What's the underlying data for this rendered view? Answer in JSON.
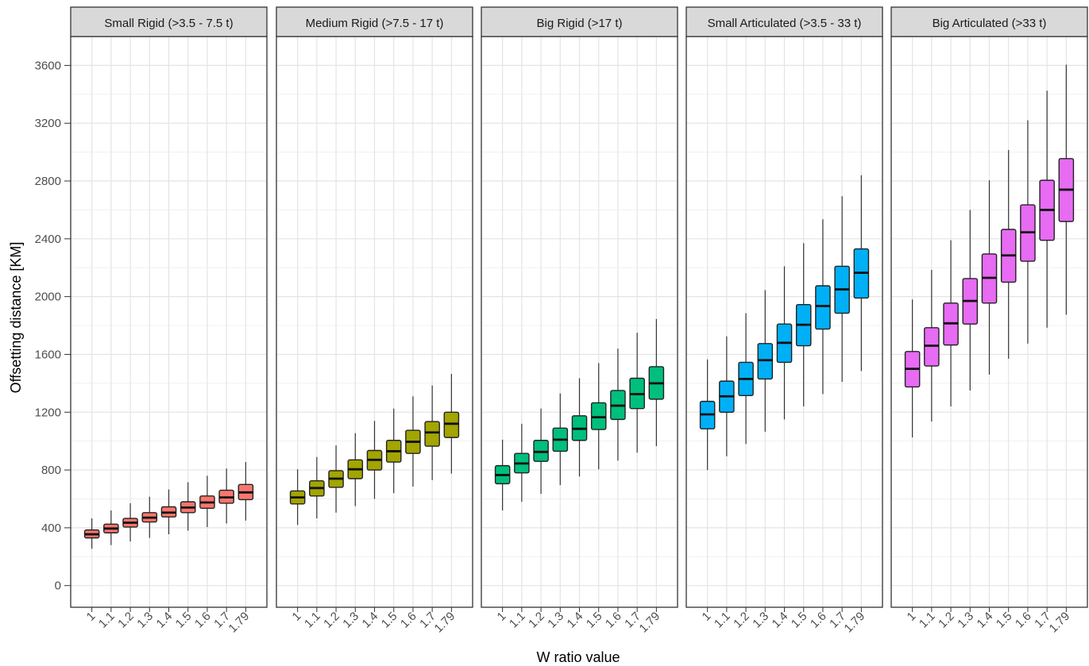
{
  "chart_data": {
    "type": "boxplot",
    "xlabel": "W ratio value",
    "ylabel": "Offsetting distance [KM]",
    "ylim": [
      -150,
      3800
    ],
    "y_ticks": [
      0,
      400,
      800,
      1200,
      1600,
      2000,
      2400,
      2800,
      3200,
      3600
    ],
    "categories": [
      "1",
      "1.1",
      "1.2",
      "1.3",
      "1.4",
      "1.5",
      "1.6",
      "1.7",
      "1.79"
    ],
    "grid": true,
    "legend": "none",
    "panels": [
      {
        "name": "Small Rigid (>3.5 - 7.5 t)",
        "color": "#f8766d",
        "boxes": [
          {
            "min": 255,
            "q1": 330,
            "median": 355,
            "q3": 385,
            "max": 465
          },
          {
            "min": 280,
            "q1": 365,
            "median": 395,
            "q3": 425,
            "max": 520
          },
          {
            "min": 305,
            "q1": 405,
            "median": 435,
            "q3": 465,
            "max": 570
          },
          {
            "min": 330,
            "q1": 440,
            "median": 470,
            "q3": 505,
            "max": 615
          },
          {
            "min": 355,
            "q1": 475,
            "median": 505,
            "q3": 545,
            "max": 665
          },
          {
            "min": 380,
            "q1": 505,
            "median": 540,
            "q3": 580,
            "max": 715
          },
          {
            "min": 405,
            "q1": 535,
            "median": 575,
            "q3": 620,
            "max": 760
          },
          {
            "min": 430,
            "q1": 570,
            "median": 610,
            "q3": 660,
            "max": 810
          },
          {
            "min": 450,
            "q1": 595,
            "median": 645,
            "q3": 700,
            "max": 855
          }
        ]
      },
      {
        "name": "Medium Rigid (>7.5 - 17 t)",
        "color": "#a3a500",
        "boxes": [
          {
            "min": 420,
            "q1": 565,
            "median": 610,
            "q3": 655,
            "max": 805
          },
          {
            "min": 465,
            "q1": 620,
            "median": 675,
            "q3": 725,
            "max": 890
          },
          {
            "min": 505,
            "q1": 680,
            "median": 740,
            "q3": 795,
            "max": 970
          },
          {
            "min": 550,
            "q1": 740,
            "median": 805,
            "q3": 870,
            "max": 1055
          },
          {
            "min": 600,
            "q1": 800,
            "median": 870,
            "q3": 935,
            "max": 1140
          },
          {
            "min": 640,
            "q1": 855,
            "median": 930,
            "q3": 1005,
            "max": 1225
          },
          {
            "min": 685,
            "q1": 915,
            "median": 995,
            "q3": 1075,
            "max": 1310
          },
          {
            "min": 730,
            "q1": 965,
            "median": 1060,
            "q3": 1135,
            "max": 1385
          },
          {
            "min": 775,
            "q1": 1025,
            "median": 1120,
            "q3": 1200,
            "max": 1465
          }
        ]
      },
      {
        "name": "Big Rigid (>17 t)",
        "color": "#00bf7d",
        "boxes": [
          {
            "min": 520,
            "q1": 705,
            "median": 765,
            "q3": 830,
            "max": 1010
          },
          {
            "min": 580,
            "q1": 780,
            "median": 845,
            "q3": 915,
            "max": 1120
          },
          {
            "min": 635,
            "q1": 860,
            "median": 925,
            "q3": 1005,
            "max": 1225
          },
          {
            "min": 695,
            "q1": 930,
            "median": 1010,
            "q3": 1090,
            "max": 1330
          },
          {
            "min": 755,
            "q1": 1005,
            "median": 1085,
            "q3": 1175,
            "max": 1435
          },
          {
            "min": 805,
            "q1": 1080,
            "median": 1165,
            "q3": 1265,
            "max": 1540
          },
          {
            "min": 865,
            "q1": 1150,
            "median": 1245,
            "q3": 1350,
            "max": 1640
          },
          {
            "min": 920,
            "q1": 1225,
            "median": 1325,
            "q3": 1435,
            "max": 1750
          },
          {
            "min": 965,
            "q1": 1290,
            "median": 1400,
            "q3": 1515,
            "max": 1845
          }
        ]
      },
      {
        "name": "Small Articulated (>3.5 - 33 t)",
        "color": "#00b0f6",
        "boxes": [
          {
            "min": 800,
            "q1": 1085,
            "median": 1185,
            "q3": 1275,
            "max": 1565
          },
          {
            "min": 895,
            "q1": 1200,
            "median": 1310,
            "q3": 1415,
            "max": 1725
          },
          {
            "min": 980,
            "q1": 1315,
            "median": 1430,
            "q3": 1545,
            "max": 1885
          },
          {
            "min": 1065,
            "q1": 1430,
            "median": 1560,
            "q3": 1675,
            "max": 2045
          },
          {
            "min": 1150,
            "q1": 1545,
            "median": 1680,
            "q3": 1810,
            "max": 2210
          },
          {
            "min": 1240,
            "q1": 1660,
            "median": 1805,
            "q3": 1945,
            "max": 2370
          },
          {
            "min": 1325,
            "q1": 1775,
            "median": 1935,
            "q3": 2075,
            "max": 2535
          },
          {
            "min": 1410,
            "q1": 1885,
            "median": 2050,
            "q3": 2210,
            "max": 2695
          },
          {
            "min": 1485,
            "q1": 1990,
            "median": 2165,
            "q3": 2330,
            "max": 2840
          }
        ]
      },
      {
        "name": "Big Articulated (>33 t)",
        "color": "#e76bf3",
        "boxes": [
          {
            "min": 1025,
            "q1": 1375,
            "median": 1500,
            "q3": 1620,
            "max": 1980
          },
          {
            "min": 1135,
            "q1": 1520,
            "median": 1660,
            "q3": 1785,
            "max": 2185
          },
          {
            "min": 1240,
            "q1": 1665,
            "median": 1815,
            "q3": 1955,
            "max": 2390
          },
          {
            "min": 1350,
            "q1": 1810,
            "median": 1970,
            "q3": 2125,
            "max": 2600
          },
          {
            "min": 1460,
            "q1": 1955,
            "median": 2130,
            "q3": 2295,
            "max": 2805
          },
          {
            "min": 1570,
            "q1": 2100,
            "median": 2285,
            "q3": 2465,
            "max": 3015
          },
          {
            "min": 1675,
            "q1": 2245,
            "median": 2445,
            "q3": 2635,
            "max": 3220
          },
          {
            "min": 1785,
            "q1": 2390,
            "median": 2600,
            "q3": 2805,
            "max": 3425
          },
          {
            "min": 1875,
            "q1": 2520,
            "median": 2740,
            "q3": 2955,
            "max": 3605
          }
        ]
      }
    ]
  }
}
